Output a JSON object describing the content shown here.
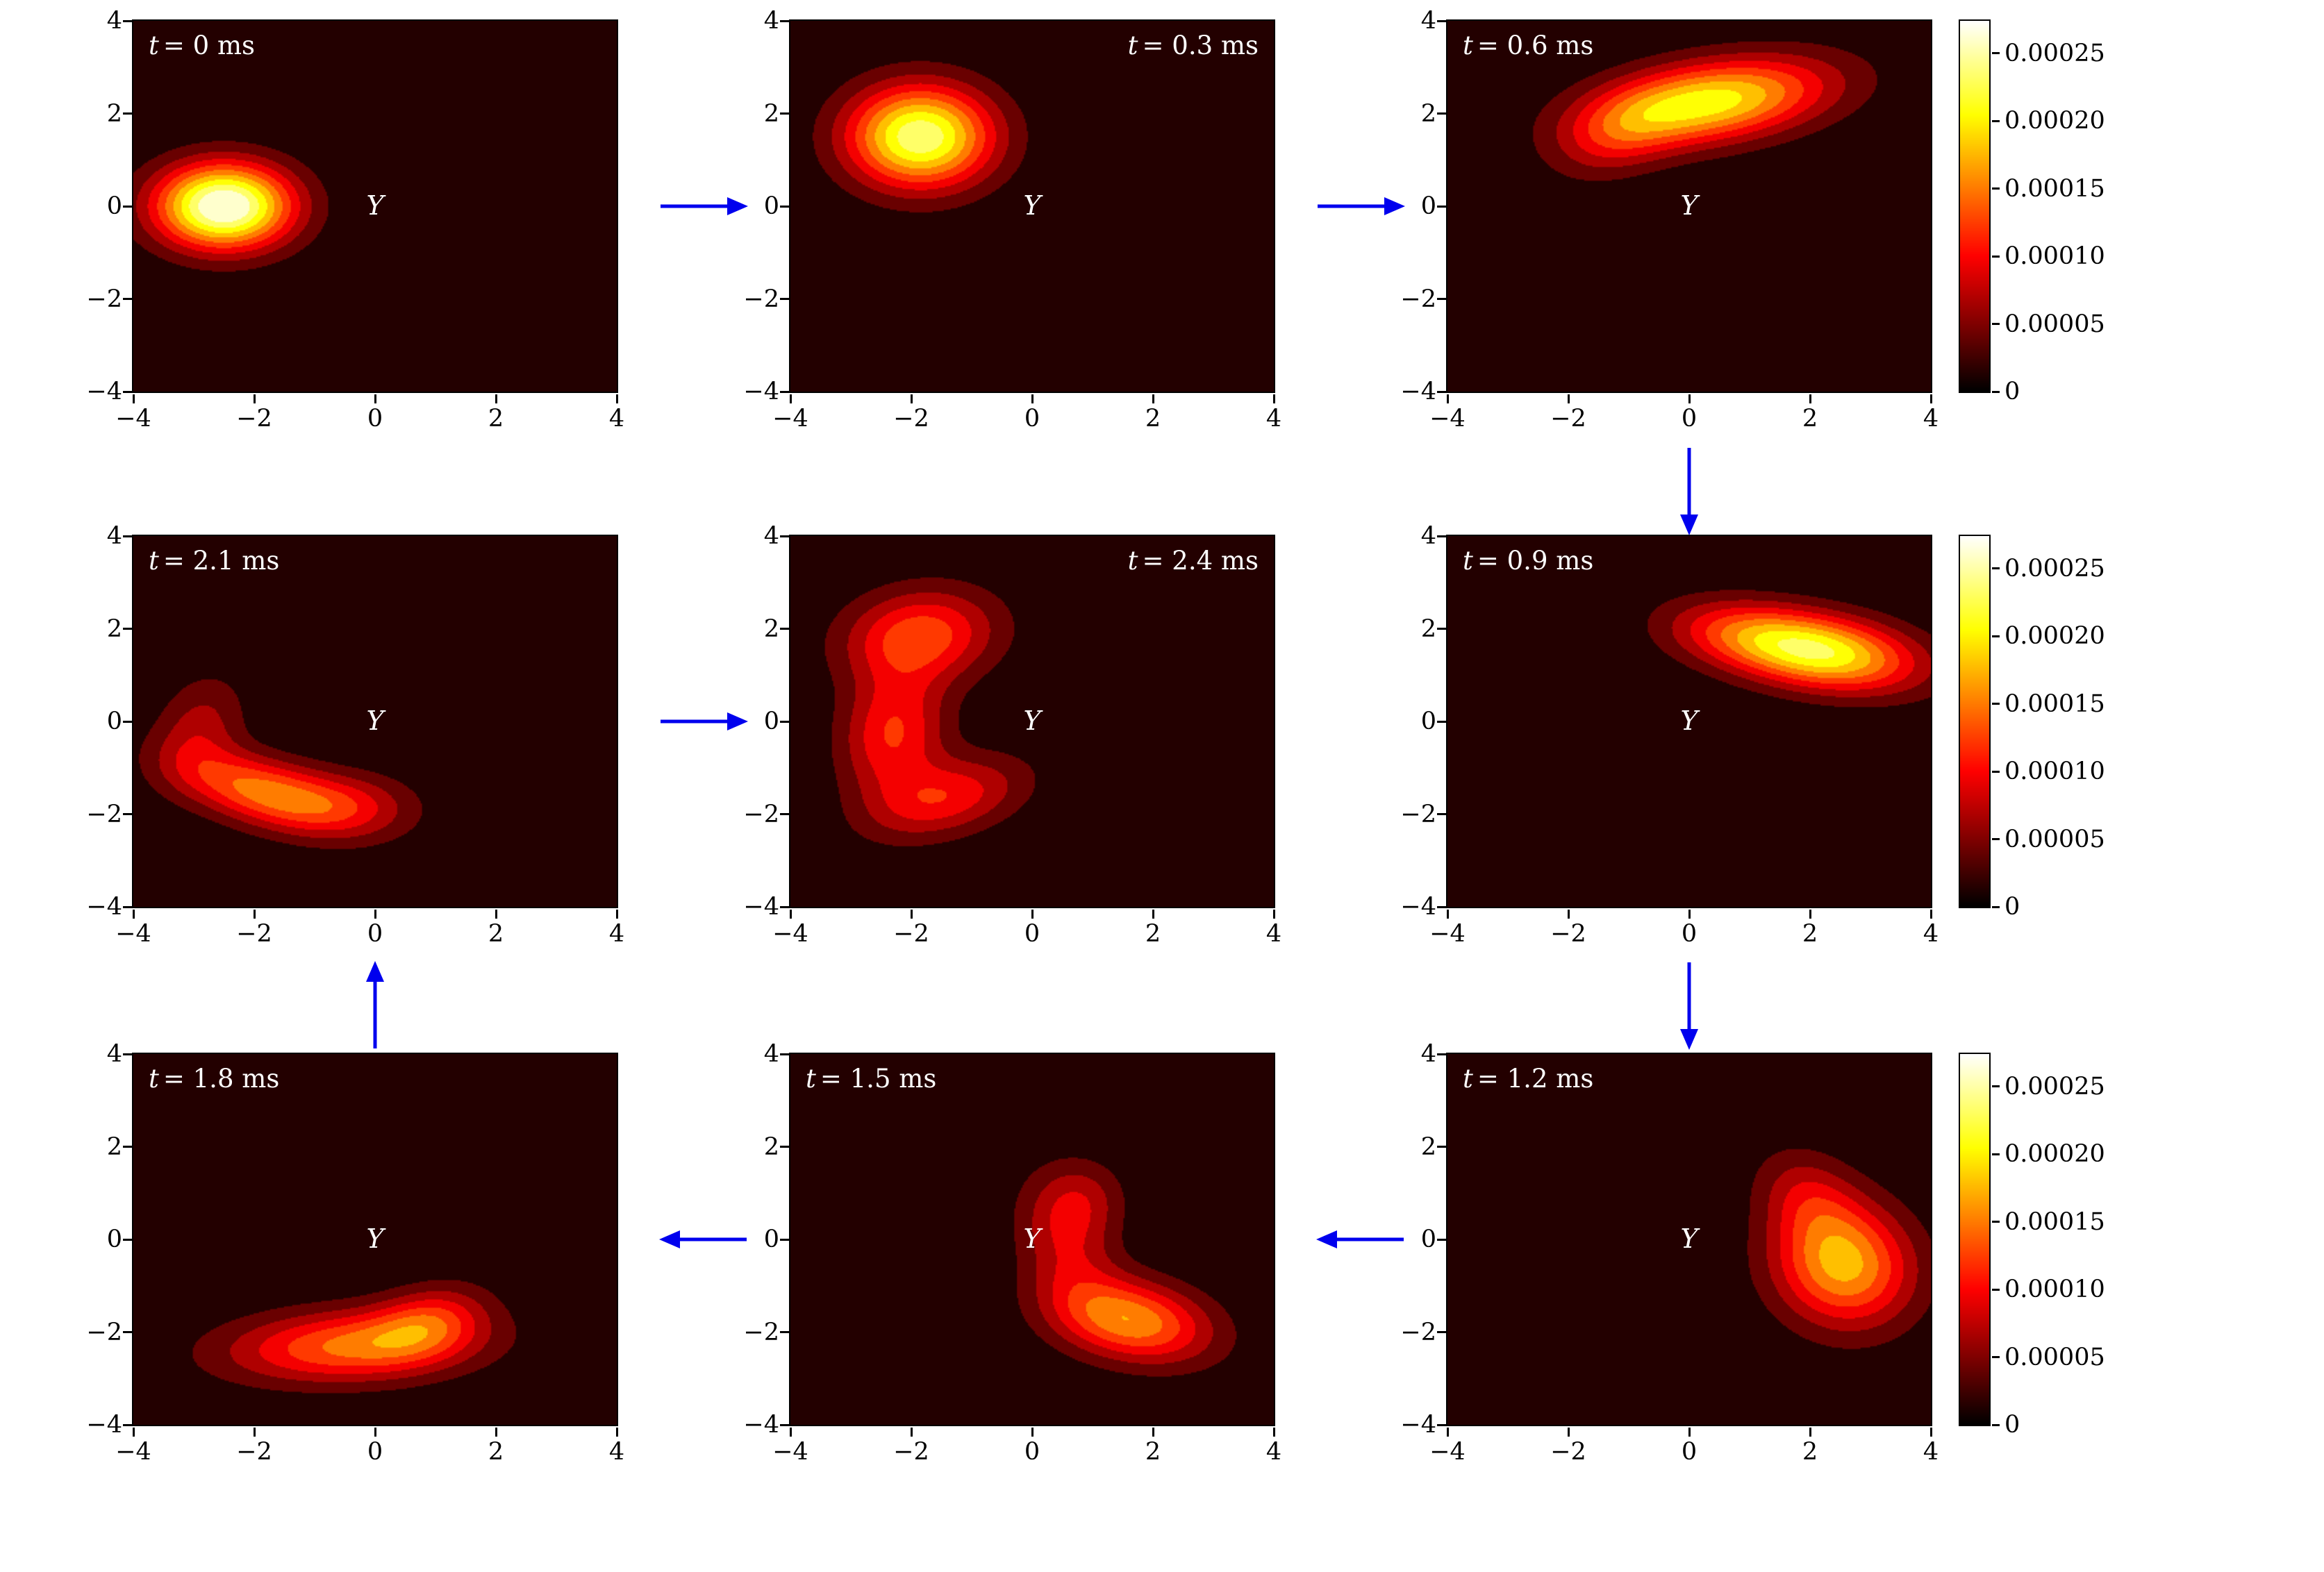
{
  "figure": {
    "description": "3x3 grid of filled-contour density maps showing the cyclic time evolution of a distribution around state Y, connected by blue flow arrows, with one colorbar per row.",
    "background": "#ffffff",
    "colormap": "hot",
    "arrow_color": "#0000ee",
    "inside_text_color": "#ffffff",
    "center_label": "Y",
    "axis": {
      "range": [
        -4,
        4
      ],
      "ticks": [
        "−4",
        "−2",
        "0",
        "2",
        "4"
      ],
      "tick_values": [
        -4,
        -2,
        0,
        2,
        4
      ]
    },
    "colorbar": {
      "scale_max": 0.000274,
      "ticks": [
        "0",
        "0.00005",
        "0.00010",
        "0.00015",
        "0.00020",
        "0.00025"
      ],
      "tick_values": [
        0,
        5e-05,
        0.0001,
        0.00015,
        0.0002,
        0.00025
      ]
    },
    "arrows": [
      {
        "from": "t = 0 ms",
        "to": "t = 0.3 ms",
        "dir": "right"
      },
      {
        "from": "t = 0.3 ms",
        "to": "t = 0.6 ms",
        "dir": "right"
      },
      {
        "from": "t = 0.6 ms",
        "to": "t = 0.9 ms",
        "dir": "down"
      },
      {
        "from": "t = 0.9 ms",
        "to": "t = 1.2 ms",
        "dir": "down"
      },
      {
        "from": "t = 1.2 ms",
        "to": "t = 1.5 ms",
        "dir": "left"
      },
      {
        "from": "t = 1.5 ms",
        "to": "t = 1.8 ms",
        "dir": "left"
      },
      {
        "from": "t = 1.8 ms",
        "to": "t = 2.1 ms",
        "dir": "up"
      },
      {
        "from": "t = 2.1 ms",
        "to": "t = 2.4 ms",
        "dir": "right"
      }
    ]
  },
  "chart_data": {
    "type": "heatmap",
    "title": "Filled contour maps of a density at successive times t = 0 to 2.4 ms cycling around state Y",
    "x_range": [
      -4,
      4
    ],
    "y_range": [
      -4,
      4
    ],
    "levels": {
      "vmin": 0,
      "vmax": 0.00026,
      "n_bands": 10
    },
    "panels": [
      {
        "time_ms": 0,
        "grid": [
          0,
          0
        ],
        "title_var": "t",
        "title_rest": "= 0 ms",
        "title_align": "left",
        "peak": {
          "x": -2.5,
          "y": 0.0,
          "value": 0.00027
        },
        "components": [
          {
            "a": 0.00027,
            "x": -2.5,
            "y": 0.0,
            "sx": 0.8,
            "sy": 0.65,
            "rot": 0
          }
        ]
      },
      {
        "time_ms": 0.3,
        "grid": [
          0,
          1
        ],
        "title_var": "t",
        "title_rest": "= 0.3 ms",
        "title_align": "right",
        "peak": {
          "x": -1.85,
          "y": 1.5,
          "value": 0.00023
        },
        "components": [
          {
            "a": 0.00023,
            "x": -1.85,
            "y": 1.5,
            "sx": 0.85,
            "sy": 0.78,
            "rot": 0
          }
        ]
      },
      {
        "time_ms": 0.6,
        "grid": [
          0,
          2
        ],
        "title_var": "t",
        "title_rest": "= 0.6 ms",
        "title_align": "left",
        "peak": {
          "x": 0.35,
          "y": 2.25,
          "value": 0.000195
        },
        "components": [
          {
            "a": 0.000195,
            "x": 0.35,
            "y": 2.25,
            "sx": 1.4,
            "sy": 0.6,
            "rot": 12
          },
          {
            "a": 6e-05,
            "x": -1.2,
            "y": 1.5,
            "sx": 0.8,
            "sy": 0.55,
            "rot": 35
          }
        ]
      },
      {
        "time_ms": 0.9,
        "grid": [
          1,
          2
        ],
        "title_var": "t",
        "title_rest": "= 0.9 ms",
        "title_align": "left",
        "peak": {
          "x": 2.15,
          "y": 1.5,
          "value": 0.000205
        },
        "components": [
          {
            "a": 0.000205,
            "x": 2.15,
            "y": 1.5,
            "sx": 1.15,
            "sy": 0.55,
            "rot": -12
          },
          {
            "a": 6e-05,
            "x": 0.7,
            "y": 1.95,
            "sx": 0.9,
            "sy": 0.5,
            "rot": -10
          }
        ]
      },
      {
        "time_ms": 1.2,
        "grid": [
          2,
          2
        ],
        "title_var": "t",
        "title_rest": "= 1.2 ms",
        "title_align": "left",
        "peak": {
          "x": 2.55,
          "y": -0.55,
          "value": 0.000165
        },
        "components": [
          {
            "a": 0.000165,
            "x": 2.55,
            "y": -0.55,
            "sx": 0.8,
            "sy": 0.95,
            "rot": 15
          },
          {
            "a": 6e-05,
            "x": 1.95,
            "y": 0.95,
            "sx": 0.55,
            "sy": 0.75,
            "rot": 25
          }
        ]
      },
      {
        "time_ms": 1.5,
        "grid": [
          2,
          1
        ],
        "title_var": "t",
        "title_rest": "= 1.5 ms",
        "title_align": "left",
        "peak": {
          "x": 1.65,
          "y": -1.75,
          "value": 0.00015
        },
        "components": [
          {
            "a": 0.00015,
            "x": 1.65,
            "y": -1.75,
            "sx": 0.95,
            "sy": 0.6,
            "rot": -18
          },
          {
            "a": 7e-05,
            "x": 0.55,
            "y": -0.1,
            "sx": 0.55,
            "sy": 1.0,
            "rot": 12
          },
          {
            "a": 5e-05,
            "x": 0.85,
            "y": 0.9,
            "sx": 0.5,
            "sy": 0.6,
            "rot": 0
          }
        ]
      },
      {
        "time_ms": 1.8,
        "grid": [
          2,
          0
        ],
        "title_var": "t",
        "title_rest": "= 1.8 ms",
        "title_align": "left",
        "peak": {
          "x": -0.4,
          "y": -2.3,
          "value": 0.000135
        },
        "components": [
          {
            "a": 0.000135,
            "x": -0.4,
            "y": -2.3,
            "sx": 1.45,
            "sy": 0.55,
            "rot": 4
          },
          {
            "a": 8e-05,
            "x": 0.9,
            "y": -1.75,
            "sx": 0.7,
            "sy": 0.5,
            "rot": 28
          }
        ]
      },
      {
        "time_ms": 2.1,
        "grid": [
          1,
          0
        ],
        "title_var": "t",
        "title_rest": "= 2.1 ms",
        "title_align": "left",
        "peak": {
          "x": -1.9,
          "y": -1.5,
          "value": 0.000135
        },
        "components": [
          {
            "a": 0.000135,
            "x": -1.9,
            "y": -1.5,
            "sx": 1.05,
            "sy": 0.5,
            "rot": -22
          },
          {
            "a": 6e-05,
            "x": -2.9,
            "y": -0.1,
            "sx": 0.5,
            "sy": 0.8,
            "rot": -15
          },
          {
            "a": 7e-05,
            "x": -0.4,
            "y": -1.8,
            "sx": 0.8,
            "sy": 0.5,
            "rot": -5
          }
        ]
      },
      {
        "time_ms": 2.4,
        "grid": [
          1,
          1
        ],
        "title_var": "t",
        "title_rest": "= 2.4 ms",
        "title_align": "right",
        "peak": {
          "x": -1.85,
          "y": 1.85,
          "value": 0.00012
        },
        "components": [
          {
            "a": 0.00012,
            "x": -1.85,
            "y": 1.85,
            "sx": 0.9,
            "sy": 0.7,
            "rot": 15
          },
          {
            "a": 0.000105,
            "x": -2.3,
            "y": -0.25,
            "sx": 0.6,
            "sy": 0.95,
            "rot": -8
          },
          {
            "a": 9.5e-05,
            "x": -1.4,
            "y": -1.65,
            "sx": 0.95,
            "sy": 0.55,
            "rot": 22
          }
        ]
      }
    ]
  }
}
